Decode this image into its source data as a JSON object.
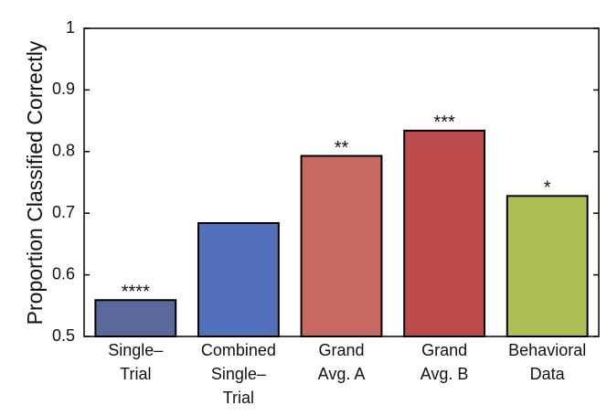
{
  "chart_data": {
    "type": "bar",
    "y_label": "Proportion Classified Correctly",
    "categories": [
      "Single–\nTrial",
      "Combined\nSingle–\nTrial",
      "Grand\nAvg. A",
      "Grand\nAvg. B",
      "Behavioral\nData"
    ],
    "values": [
      0.559,
      0.684,
      0.793,
      0.834,
      0.728
    ],
    "colors": [
      "#5a689c",
      "#5370bb",
      "#c86a62",
      "#bc4a4b",
      "#afbd55"
    ],
    "annotations": [
      "****",
      null,
      "**",
      "***",
      "*"
    ],
    "ylim": [
      0.5,
      1
    ],
    "yticks": [
      0.5,
      0.6,
      0.7,
      0.8,
      0.9,
      1
    ],
    "grid": false
  }
}
